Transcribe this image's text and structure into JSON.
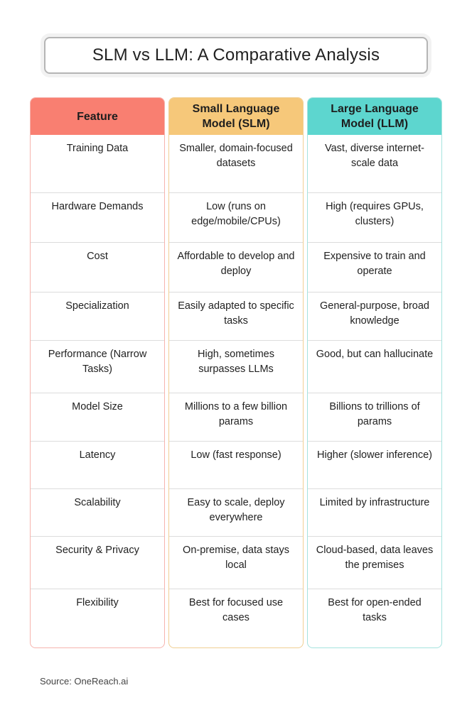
{
  "title": "SLM vs LLM: A Comparative Analysis",
  "headers": {
    "feature": "Feature",
    "slm": "Small Language Model (SLM)",
    "llm": "Large Language Model (LLM)"
  },
  "rows": [
    {
      "feature": "Training Data",
      "slm": "Smaller, domain-focused datasets",
      "llm": "Vast, diverse internet-scale data"
    },
    {
      "feature": "Hardware Demands",
      "slm": "Low (runs on edge/mobile/CPUs)",
      "llm": "High (requires GPUs, clusters)"
    },
    {
      "feature": "Cost",
      "slm": "Affordable to develop and deploy",
      "llm": "Expensive to train and operate"
    },
    {
      "feature": "Specialization",
      "slm": "Easily adapted to specific tasks",
      "llm": "General-purpose, broad knowledge"
    },
    {
      "feature": "Performance (Narrow Tasks)",
      "slm": "High, sometimes surpasses LLMs",
      "llm": "Good, but can hallucinate"
    },
    {
      "feature": "Model Size",
      "slm": "Millions to a few billion params",
      "llm": "Billions to trillions of params"
    },
    {
      "feature": "Latency",
      "slm": "Low (fast response)",
      "llm": "Higher (slower inference)"
    },
    {
      "feature": "Scalability",
      "slm": "Easy to scale, deploy everywhere",
      "llm": "Limited by infrastructure"
    },
    {
      "feature": "Security & Privacy",
      "slm": "On-premise, data stays local",
      "llm": "Cloud-based, data leaves the premises"
    },
    {
      "feature": "Flexibility",
      "slm": "Best for focused use cases",
      "llm": "Best for open-ended tasks"
    }
  ],
  "source": "Source: OneReach.ai",
  "colors": {
    "feature_header": "#f97f71",
    "slm_header": "#f6c87a",
    "llm_header": "#5dd6cf"
  }
}
